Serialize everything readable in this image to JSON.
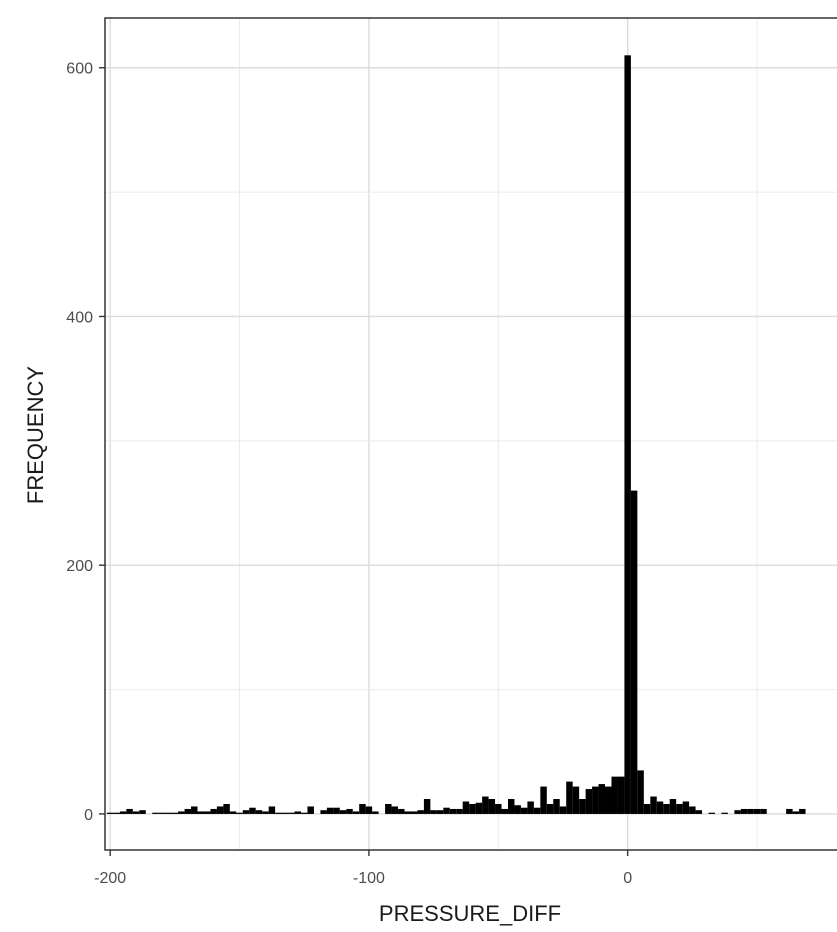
{
  "chart_data": {
    "type": "bar",
    "title": "",
    "xlabel": "PRESSURE_DIFF",
    "ylabel": "FREQUENCY",
    "xlim": [
      -202,
      84
    ],
    "ylim": [
      -29,
      640
    ],
    "grid": true,
    "bin_width": 2.5,
    "x_ticks": [
      -200,
      -100,
      0
    ],
    "x_tick_labels": [
      "-200",
      "-100",
      "0"
    ],
    "y_ticks": [
      0,
      200,
      400,
      600
    ],
    "y_tick_labels": [
      "0",
      "200",
      "400",
      "600"
    ],
    "bar_color": "#000000",
    "bins": [
      {
        "x": -200,
        "y": 1
      },
      {
        "x": -197.5,
        "y": 1
      },
      {
        "x": -195,
        "y": 2
      },
      {
        "x": -192.5,
        "y": 4
      },
      {
        "x": -190,
        "y": 2
      },
      {
        "x": -187.5,
        "y": 3
      },
      {
        "x": -182.5,
        "y": 1
      },
      {
        "x": -180,
        "y": 1
      },
      {
        "x": -177.5,
        "y": 1
      },
      {
        "x": -175,
        "y": 1
      },
      {
        "x": -172.5,
        "y": 2
      },
      {
        "x": -170,
        "y": 4
      },
      {
        "x": -167.5,
        "y": 6
      },
      {
        "x": -165,
        "y": 2
      },
      {
        "x": -162.5,
        "y": 2
      },
      {
        "x": -160,
        "y": 4
      },
      {
        "x": -157.5,
        "y": 6
      },
      {
        "x": -155,
        "y": 8
      },
      {
        "x": -152.5,
        "y": 2
      },
      {
        "x": -150,
        "y": 1
      },
      {
        "x": -147.5,
        "y": 3
      },
      {
        "x": -145,
        "y": 5
      },
      {
        "x": -142.5,
        "y": 3
      },
      {
        "x": -140,
        "y": 2
      },
      {
        "x": -137.5,
        "y": 6
      },
      {
        "x": -135,
        "y": 1
      },
      {
        "x": -132.5,
        "y": 1
      },
      {
        "x": -130,
        "y": 1
      },
      {
        "x": -127.5,
        "y": 2
      },
      {
        "x": -125,
        "y": 1
      },
      {
        "x": -122.5,
        "y": 6
      },
      {
        "x": -117.5,
        "y": 3
      },
      {
        "x": -115,
        "y": 5
      },
      {
        "x": -112.5,
        "y": 5
      },
      {
        "x": -110,
        "y": 3
      },
      {
        "x": -107.5,
        "y": 4
      },
      {
        "x": -105,
        "y": 2
      },
      {
        "x": -102.5,
        "y": 8
      },
      {
        "x": -100,
        "y": 6
      },
      {
        "x": -97.5,
        "y": 2
      },
      {
        "x": -92.5,
        "y": 8
      },
      {
        "x": -90,
        "y": 6
      },
      {
        "x": -87.5,
        "y": 4
      },
      {
        "x": -85,
        "y": 2
      },
      {
        "x": -82.5,
        "y": 2
      },
      {
        "x": -80,
        "y": 3
      },
      {
        "x": -77.5,
        "y": 12
      },
      {
        "x": -75,
        "y": 3
      },
      {
        "x": -72.5,
        "y": 3
      },
      {
        "x": -70,
        "y": 5
      },
      {
        "x": -67.5,
        "y": 4
      },
      {
        "x": -65,
        "y": 4
      },
      {
        "x": -62.5,
        "y": 10
      },
      {
        "x": -60,
        "y": 8
      },
      {
        "x": -57.5,
        "y": 9
      },
      {
        "x": -55,
        "y": 14
      },
      {
        "x": -52.5,
        "y": 12
      },
      {
        "x": -50,
        "y": 8
      },
      {
        "x": -47.5,
        "y": 4
      },
      {
        "x": -45,
        "y": 12
      },
      {
        "x": -42.5,
        "y": 7
      },
      {
        "x": -40,
        "y": 5
      },
      {
        "x": -37.5,
        "y": 10
      },
      {
        "x": -35,
        "y": 5
      },
      {
        "x": -32.5,
        "y": 22
      },
      {
        "x": -30,
        "y": 8
      },
      {
        "x": -27.5,
        "y": 12
      },
      {
        "x": -25,
        "y": 6
      },
      {
        "x": -22.5,
        "y": 26
      },
      {
        "x": -20,
        "y": 22
      },
      {
        "x": -17.5,
        "y": 12
      },
      {
        "x": -15,
        "y": 20
      },
      {
        "x": -12.5,
        "y": 22
      },
      {
        "x": -10,
        "y": 24
      },
      {
        "x": -7.5,
        "y": 22
      },
      {
        "x": -5,
        "y": 30
      },
      {
        "x": -2.5,
        "y": 30
      },
      {
        "x": 0,
        "y": 610
      },
      {
        "x": 2.5,
        "y": 260
      },
      {
        "x": 5,
        "y": 35
      },
      {
        "x": 7.5,
        "y": 8
      },
      {
        "x": 10,
        "y": 14
      },
      {
        "x": 12.5,
        "y": 10
      },
      {
        "x": 15,
        "y": 8
      },
      {
        "x": 17.5,
        "y": 12
      },
      {
        "x": 20,
        "y": 8
      },
      {
        "x": 22.5,
        "y": 10
      },
      {
        "x": 25,
        "y": 6
      },
      {
        "x": 27.5,
        "y": 3
      },
      {
        "x": 32.5,
        "y": 1
      },
      {
        "x": 37.5,
        "y": 1
      },
      {
        "x": 42.5,
        "y": 3
      },
      {
        "x": 45,
        "y": 4
      },
      {
        "x": 47.5,
        "y": 4
      },
      {
        "x": 50,
        "y": 4
      },
      {
        "x": 52.5,
        "y": 4
      },
      {
        "x": 62.5,
        "y": 4
      },
      {
        "x": 65,
        "y": 2
      },
      {
        "x": 67.5,
        "y": 4
      }
    ]
  }
}
